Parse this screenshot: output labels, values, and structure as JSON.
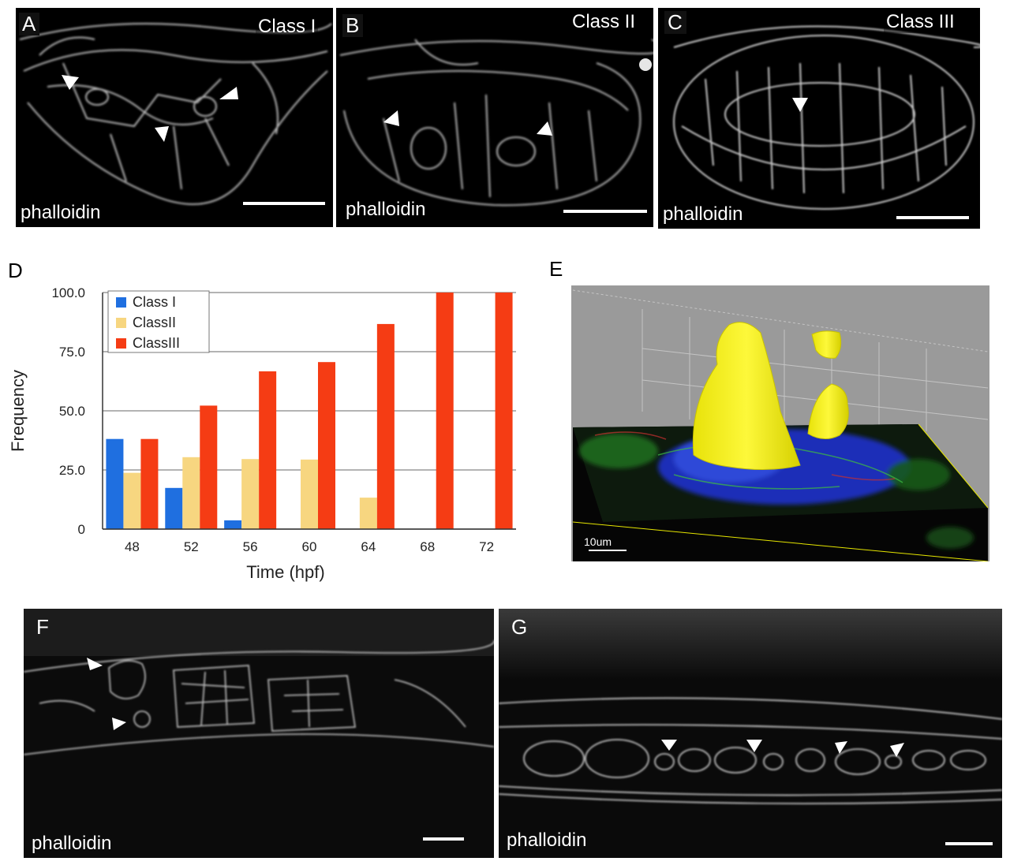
{
  "panels": {
    "A": {
      "letter": "A",
      "class_label": "Class I",
      "stain": "phalloidin"
    },
    "B": {
      "letter": "B",
      "class_label": "Class II",
      "stain": "phalloidin"
    },
    "C": {
      "letter": "C",
      "class_label": "Class III",
      "stain": "phalloidin"
    },
    "D": {
      "letter": "D"
    },
    "E": {
      "letter": "E",
      "scale_label": "10um"
    },
    "F": {
      "letter": "F",
      "stain": "phalloidin"
    },
    "G": {
      "letter": "G",
      "stain": "phalloidin"
    }
  },
  "chart_data": {
    "type": "bar",
    "title": "",
    "xlabel": "Time (hpf)",
    "ylabel": "Frequency",
    "categories": [
      "48",
      "52",
      "56",
      "60",
      "64",
      "68",
      "72"
    ],
    "yticks": [
      "0",
      "25.0",
      "50.0",
      "75.0",
      "100.0"
    ],
    "ylim": [
      0,
      100
    ],
    "grid": true,
    "legend_position": "top-left",
    "series": [
      {
        "name": "Class I",
        "color": "#1f6fe0",
        "values": [
          38.1,
          17.4,
          3.7,
          0,
          0,
          0,
          0
        ]
      },
      {
        "name": "ClassII",
        "color": "#f7d680",
        "values": [
          23.8,
          30.4,
          29.6,
          29.4,
          13.3,
          0,
          0
        ]
      },
      {
        "name": "ClassIII",
        "color": "#f53c14",
        "values": [
          38.1,
          52.2,
          66.7,
          70.6,
          86.7,
          100,
          100
        ]
      }
    ]
  }
}
